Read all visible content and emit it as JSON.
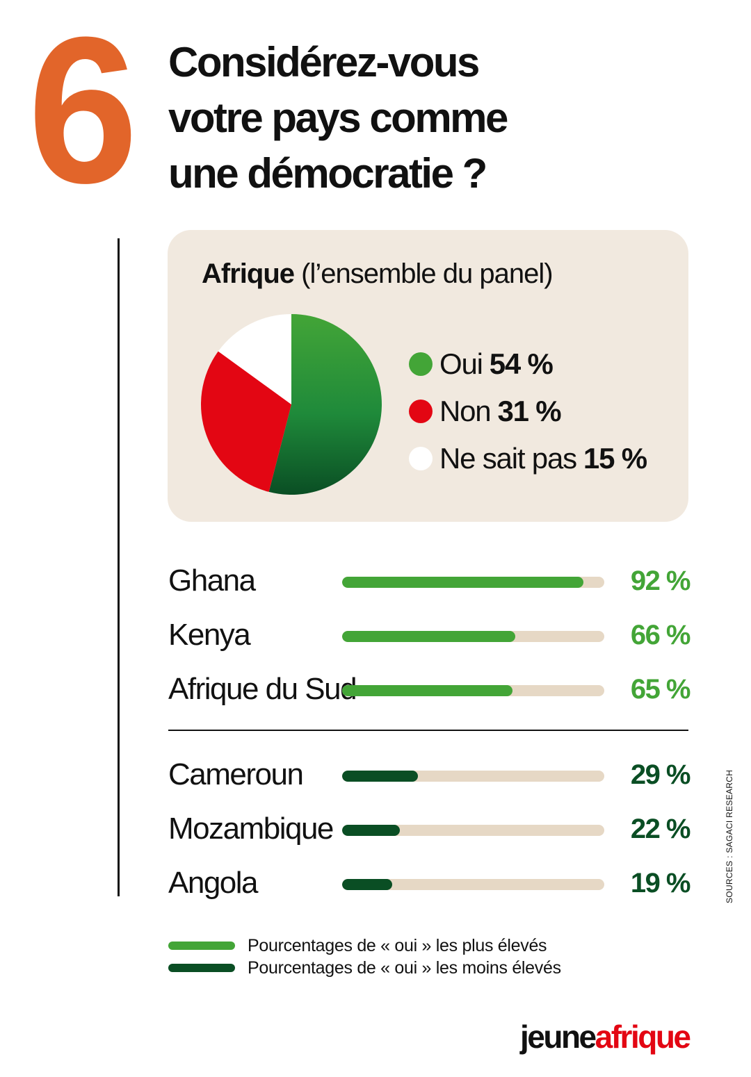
{
  "header": {
    "number": "6",
    "question_lines": [
      "Considérez-vous",
      "votre pays comme",
      "une démocratie ?"
    ]
  },
  "panel": {
    "title_bold": "Afrique",
    "title_rest": "(l’ensemble du panel)"
  },
  "colors": {
    "orange": "#e2652a",
    "green_light": "#43a537",
    "green_dark": "#0a4e24",
    "red": "#e30613",
    "beige_box": "#f1e9df",
    "beige_track": "#e6d8c5"
  },
  "chart_data": [
    {
      "type": "pie",
      "title": "Afrique (l’ensemble du panel)",
      "slices": [
        {
          "label": "Oui",
          "value": 54,
          "display": "54 %",
          "color": "#43a537"
        },
        {
          "label": "Non",
          "value": 31,
          "display": "31 %",
          "color": "#e30613"
        },
        {
          "label": "Ne sait pas",
          "value": 15,
          "display": "15 %",
          "color": "#ffffff"
        }
      ]
    },
    {
      "type": "bar",
      "orientation": "horizontal",
      "xlim": [
        0,
        100
      ],
      "groups": [
        {
          "legend": "Pourcentages de « oui » les plus élevés",
          "color": "#43a537",
          "items": [
            {
              "country": "Ghana",
              "value": 92,
              "display": "92 %"
            },
            {
              "country": "Kenya",
              "value": 66,
              "display": "66 %"
            },
            {
              "country": "Afrique du Sud",
              "value": 65,
              "display": "65 %"
            }
          ]
        },
        {
          "legend": "Pourcentages de « oui » les moins élevés",
          "color": "#0a4e24",
          "items": [
            {
              "country": "Cameroun",
              "value": 29,
              "display": "29 %"
            },
            {
              "country": "Mozambique",
              "value": 22,
              "display": "22 %"
            },
            {
              "country": "Angola",
              "value": 19,
              "display": "19 %"
            }
          ]
        }
      ]
    }
  ],
  "source": "SOURCES : SAGACI RESEARCH",
  "brand": {
    "part1": "jeune",
    "part2": "afrique"
  }
}
